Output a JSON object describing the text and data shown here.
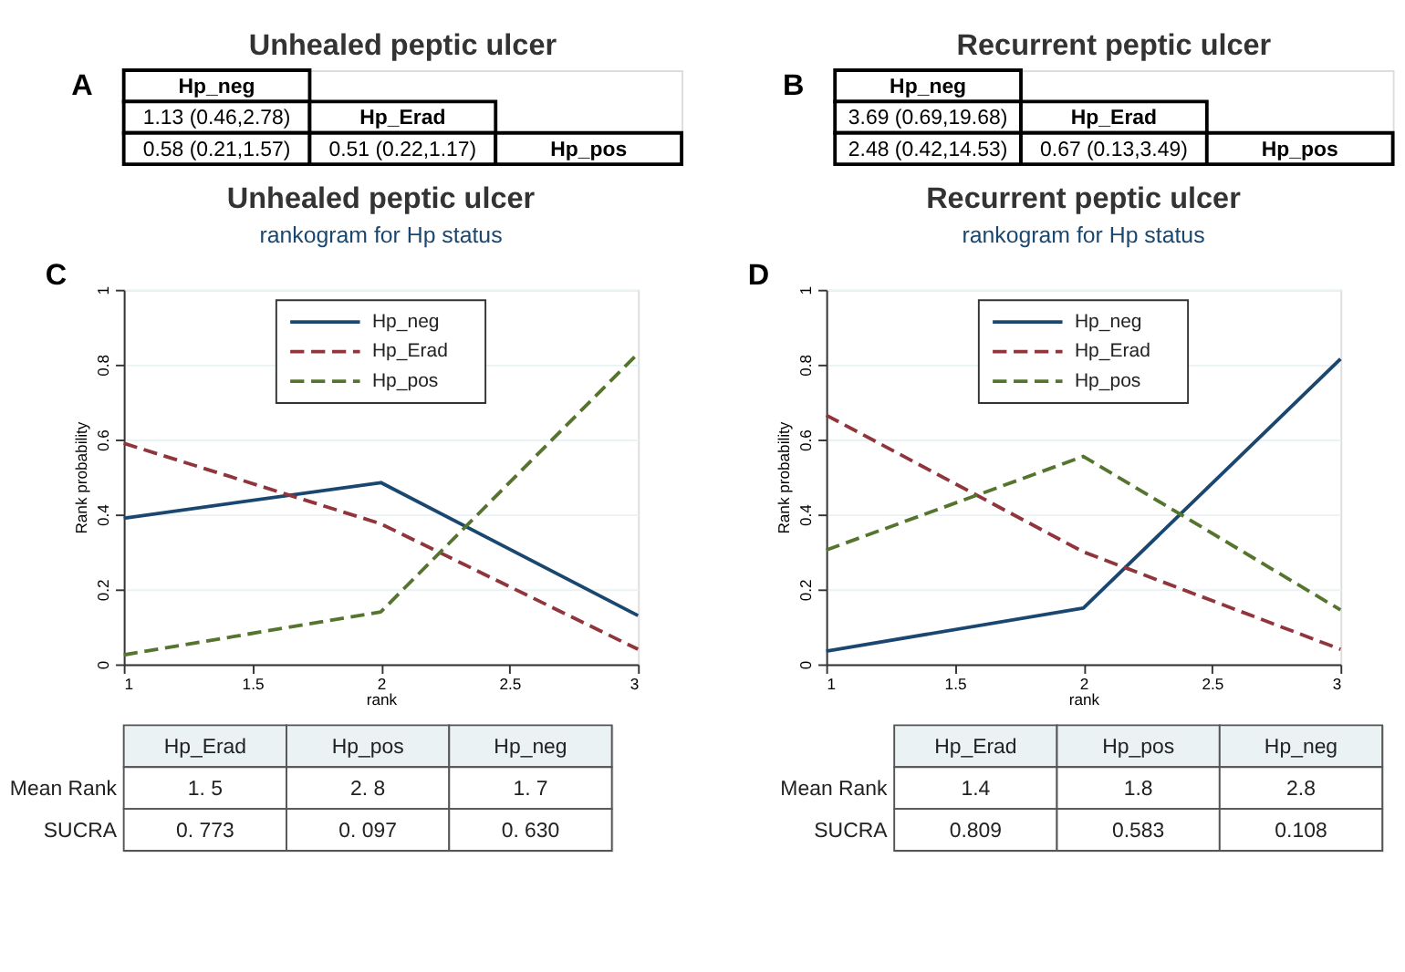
{
  "chart_data": [
    {
      "type": "other",
      "title": "Unhealed peptic ulcer",
      "annotations": [
        "A"
      ],
      "cell_labels": [
        [
          "Hp_neg",
          null,
          null
        ],
        [
          "1.13 (0.46,2.78)",
          "Hp_Erad",
          null
        ],
        [
          "0.58 (0.21,1.57)",
          "0.51 (0.22,1.17)",
          "Hp_pos"
        ]
      ]
    },
    {
      "type": "other",
      "title": "Recurrent peptic ulcer",
      "annotations": [
        "B"
      ],
      "cell_labels": [
        [
          "Hp_neg",
          null,
          null
        ],
        [
          "3.69 (0.69,19.68)",
          "Hp_Erad",
          null
        ],
        [
          "2.48 (0.42,14.53)",
          "0.67 (0.13,3.49)",
          "Hp_pos"
        ]
      ]
    },
    {
      "type": "line",
      "title": "Unhealed peptic ulcer",
      "subtitle": "rankogram for Hp status",
      "annotations": [
        "C"
      ],
      "xlabel": "rank",
      "ylabel": "Rank probability",
      "x": [
        1,
        2,
        3
      ],
      "xlim": [
        1,
        3
      ],
      "xticks": [
        1,
        1.5,
        2,
        2.5,
        3
      ],
      "ylim": [
        0,
        1
      ],
      "yticks": [
        0,
        0.2,
        0.4,
        0.6,
        0.8,
        1
      ],
      "grid": "y",
      "legend": "top",
      "marker": "none",
      "series": [
        {
          "name": "Hp_neg",
          "color": "#1a476f",
          "line_style": "solid",
          "values": [
            0.39,
            0.485,
            0.13
          ]
        },
        {
          "name": "Hp_Erad",
          "color": "#90353b",
          "line_style": "dashed",
          "values": [
            0.59,
            0.375,
            0.04
          ]
        },
        {
          "name": "Hp_pos",
          "color": "#55752f",
          "line_style": "dashed",
          "values": [
            0.025,
            0.14,
            0.83
          ]
        }
      ]
    },
    {
      "type": "line",
      "title": "Recurrent peptic ulcer",
      "subtitle": "rankogram for Hp status",
      "annotations": [
        "D"
      ],
      "xlabel": "rank",
      "ylabel": "Rank probability",
      "x": [
        1,
        2,
        3
      ],
      "xlim": [
        1,
        3
      ],
      "xticks": [
        1,
        1.5,
        2,
        2.5,
        3
      ],
      "ylim": [
        0,
        1
      ],
      "yticks": [
        0,
        0.2,
        0.4,
        0.6,
        0.8,
        1
      ],
      "grid": "y",
      "legend": "top",
      "marker": "none",
      "series": [
        {
          "name": "Hp_neg",
          "color": "#1a476f",
          "line_style": "solid",
          "values": [
            0.035,
            0.15,
            0.815
          ]
        },
        {
          "name": "Hp_Erad",
          "color": "#90353b",
          "line_style": "dashed",
          "values": [
            0.665,
            0.3,
            0.04
          ]
        },
        {
          "name": "Hp_pos",
          "color": "#55752f",
          "line_style": "dashed",
          "values": [
            0.305,
            0.555,
            0.145
          ]
        }
      ]
    },
    {
      "type": "other",
      "categories": [
        "Hp_Erad",
        "Hp_pos",
        "Hp_neg"
      ],
      "y_categories": [
        "Mean Rank",
        "SUCRA"
      ],
      "cell_labels": [
        [
          "1. 5",
          "2. 8",
          "1. 7"
        ],
        [
          "0. 773",
          "0. 097",
          "0. 630"
        ]
      ]
    },
    {
      "type": "other",
      "categories": [
        "Hp_Erad",
        "Hp_pos",
        "Hp_neg"
      ],
      "y_categories": [
        "Mean Rank",
        "SUCRA"
      ],
      "cell_labels": [
        [
          "1.4",
          "1.8",
          "2.8"
        ],
        [
          "0.809",
          "0.583",
          "0.108"
        ]
      ]
    }
  ]
}
